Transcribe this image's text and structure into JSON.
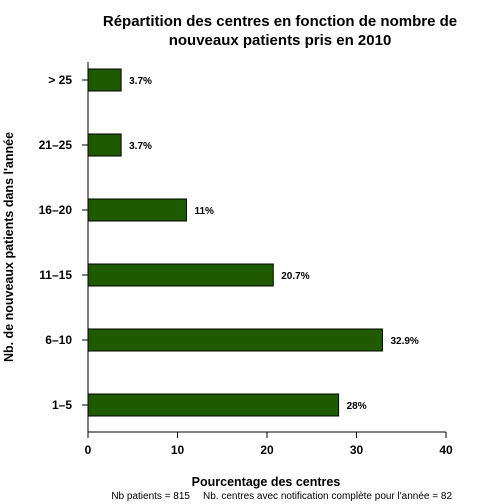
{
  "chart_data": {
    "type": "bar",
    "orientation": "horizontal",
    "title_lines": [
      "Répartition des centres en fonction de nombre de",
      "nouveaux patients pris en 2010"
    ],
    "xlabel": "Pourcentage des centres",
    "ylabel": "Nb. de nouveaux patients dans l'année",
    "categories": [
      "1–5",
      "6–10",
      "11–15",
      "16–20",
      "21–25",
      "> 25"
    ],
    "values": [
      28,
      32.9,
      20.7,
      11,
      3.7,
      3.7
    ],
    "value_labels": [
      "28%",
      "32.9%",
      "20.7%",
      "11%",
      "3.7%",
      "3.7%"
    ],
    "xlim": [
      0,
      40
    ],
    "xticks": [
      "0",
      "10",
      "20",
      "30",
      "40"
    ],
    "grid": false,
    "bar_color": "#1f5a00",
    "bar_edge_color": "#000000"
  },
  "footer": {
    "patients": "Nb patients =  815",
    "centres": "Nb. centres avec notification complète pour l'année =  82"
  }
}
